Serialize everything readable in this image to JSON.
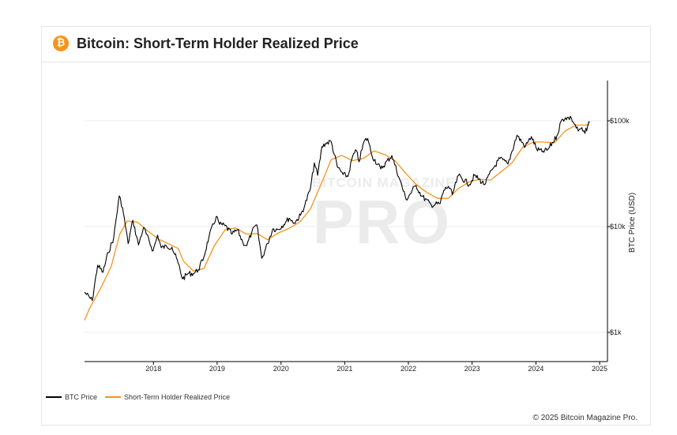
{
  "header": {
    "logo_glyph": "₿",
    "title": "Bitcoin: Short-Term Holder Realized Price"
  },
  "watermark": {
    "top": "BITCOIN MAGAZINE",
    "main": "PRO"
  },
  "footer": {
    "copyright": "© 2025 Bitcoin Magazine Pro."
  },
  "legend": [
    {
      "label": "BTC Price",
      "color": "#000000"
    },
    {
      "label": "Short-Term Holder Realized Price",
      "color": "#f7931a"
    }
  ],
  "chart_data": {
    "type": "line",
    "title": "Bitcoin: Short-Term Holder Realized Price",
    "ylabel": "BTC Price (USD)",
    "yscale": "log",
    "ylim": [
      400,
      250000
    ],
    "xlim": [
      "2017-06-01",
      "2025-08-15"
    ],
    "grid": true,
    "legend_position": "bottom-left",
    "x_ticks": [
      "2018",
      "2019",
      "2020",
      "2021",
      "2022",
      "2023",
      "2024",
      "2025"
    ],
    "y_ticks": [
      {
        "value": 1000,
        "label": "$1k"
      },
      {
        "value": 10000,
        "label": "$10k"
      },
      {
        "value": 100000,
        "label": "$100k"
      }
    ],
    "series": [
      {
        "name": "BTC Price",
        "color": "#000000",
        "points": [
          [
            "2017-06-01",
            2400
          ],
          [
            "2017-07-15",
            2000
          ],
          [
            "2017-08-15",
            4300
          ],
          [
            "2017-09-15",
            3700
          ],
          [
            "2017-10-15",
            5700
          ],
          [
            "2017-11-15",
            7800
          ],
          [
            "2017-12-17",
            19500
          ],
          [
            "2018-01-05",
            15000
          ],
          [
            "2018-02-06",
            6900
          ],
          [
            "2018-03-05",
            11500
          ],
          [
            "2018-04-06",
            6700
          ],
          [
            "2018-05-05",
            9800
          ],
          [
            "2018-06-29",
            5900
          ],
          [
            "2018-07-25",
            8300
          ],
          [
            "2018-08-15",
            6300
          ],
          [
            "2018-09-15",
            6500
          ],
          [
            "2018-10-15",
            6400
          ],
          [
            "2018-11-20",
            4500
          ],
          [
            "2018-12-15",
            3200
          ],
          [
            "2019-01-15",
            3600
          ],
          [
            "2019-02-15",
            3600
          ],
          [
            "2019-03-15",
            3900
          ],
          [
            "2019-04-15",
            5100
          ],
          [
            "2019-05-15",
            8000
          ],
          [
            "2019-06-26",
            12500
          ],
          [
            "2019-07-15",
            10500
          ],
          [
            "2019-08-15",
            10200
          ],
          [
            "2019-09-25",
            8500
          ],
          [
            "2019-10-26",
            9300
          ],
          [
            "2019-11-25",
            7100
          ],
          [
            "2019-12-18",
            6600
          ],
          [
            "2020-01-15",
            8800
          ],
          [
            "2020-02-13",
            10400
          ],
          [
            "2020-03-13",
            5000
          ],
          [
            "2020-04-15",
            6900
          ],
          [
            "2020-05-15",
            9500
          ],
          [
            "2020-06-15",
            9400
          ],
          [
            "2020-07-27",
            11000
          ],
          [
            "2020-08-17",
            12000
          ],
          [
            "2020-09-15",
            10800
          ],
          [
            "2020-10-21",
            12800
          ],
          [
            "2020-11-15",
            16000
          ],
          [
            "2020-12-17",
            23000
          ],
          [
            "2021-01-08",
            40000
          ],
          [
            "2021-01-27",
            30500
          ],
          [
            "2021-02-21",
            57000
          ],
          [
            "2021-03-13",
            61000
          ],
          [
            "2021-04-14",
            64000
          ],
          [
            "2021-05-19",
            37000
          ],
          [
            "2021-06-22",
            31000
          ],
          [
            "2021-07-20",
            29800
          ],
          [
            "2021-08-15",
            46000
          ],
          [
            "2021-09-07",
            52000
          ],
          [
            "2021-09-21",
            41000
          ],
          [
            "2021-10-20",
            64000
          ],
          [
            "2021-11-10",
            68000
          ],
          [
            "2021-12-04",
            47000
          ],
          [
            "2022-01-24",
            35000
          ],
          [
            "2022-03-28",
            47000
          ],
          [
            "2022-05-12",
            28000
          ],
          [
            "2022-06-18",
            18000
          ],
          [
            "2022-08-14",
            24500
          ],
          [
            "2022-09-15",
            19500
          ],
          [
            "2022-11-09",
            16000
          ],
          [
            "2022-12-30",
            16500
          ],
          [
            "2023-01-20",
            22000
          ],
          [
            "2023-02-15",
            24000
          ],
          [
            "2023-03-10",
            20000
          ],
          [
            "2023-04-14",
            30500
          ],
          [
            "2023-06-15",
            25000
          ],
          [
            "2023-07-15",
            30500
          ],
          [
            "2023-09-11",
            25000
          ],
          [
            "2023-10-24",
            34500
          ],
          [
            "2023-12-08",
            44000
          ],
          [
            "2024-01-23",
            39000
          ],
          [
            "2024-03-14",
            73000
          ],
          [
            "2024-05-01",
            57000
          ],
          [
            "2024-06-05",
            71000
          ],
          [
            "2024-07-05",
            54000
          ],
          [
            "2024-08-05",
            51000
          ],
          [
            "2024-09-06",
            53000
          ],
          [
            "2024-10-29",
            72000
          ],
          [
            "2024-11-22",
            99000
          ],
          [
            "2024-12-17",
            107000
          ],
          [
            "2025-01-20",
            106000
          ],
          [
            "2025-02-28",
            80000
          ],
          [
            "2025-03-15",
            84000
          ],
          [
            "2025-04-08",
            76000
          ],
          [
            "2025-04-28",
            95000
          ],
          [
            "2025-05-03",
            96000
          ]
        ]
      },
      {
        "name": "Short-Term Holder Realized Price",
        "color": "#f7931a",
        "points": [
          [
            "2017-06-01",
            1300
          ],
          [
            "2017-07-01",
            1700
          ],
          [
            "2017-09-01",
            2600
          ],
          [
            "2017-11-01",
            4200
          ],
          [
            "2017-12-20",
            8500
          ],
          [
            "2018-02-01",
            11300
          ],
          [
            "2018-04-01",
            11000
          ],
          [
            "2018-06-01",
            9000
          ],
          [
            "2018-08-01",
            7600
          ],
          [
            "2018-10-01",
            6800
          ],
          [
            "2018-11-20",
            6200
          ],
          [
            "2018-12-20",
            4700
          ],
          [
            "2019-02-15",
            3800
          ],
          [
            "2019-04-15",
            4000
          ],
          [
            "2019-06-15",
            6600
          ],
          [
            "2019-08-15",
            9300
          ],
          [
            "2019-10-15",
            9700
          ],
          [
            "2019-12-15",
            8500
          ],
          [
            "2020-02-15",
            8600
          ],
          [
            "2020-04-15",
            7500
          ],
          [
            "2020-06-15",
            8700
          ],
          [
            "2020-08-15",
            9600
          ],
          [
            "2020-10-15",
            11000
          ],
          [
            "2020-12-15",
            14500
          ],
          [
            "2021-02-15",
            25000
          ],
          [
            "2021-04-15",
            43000
          ],
          [
            "2021-06-15",
            47000
          ],
          [
            "2021-08-15",
            42000
          ],
          [
            "2021-10-15",
            44000
          ],
          [
            "2021-12-15",
            52000
          ],
          [
            "2022-02-15",
            48000
          ],
          [
            "2022-04-15",
            42000
          ],
          [
            "2022-06-15",
            32000
          ],
          [
            "2022-08-15",
            25000
          ],
          [
            "2022-10-15",
            21000
          ],
          [
            "2022-12-15",
            18500
          ],
          [
            "2023-02-15",
            18500
          ],
          [
            "2023-04-15",
            23000
          ],
          [
            "2023-06-15",
            26500
          ],
          [
            "2023-08-15",
            28000
          ],
          [
            "2023-10-15",
            27500
          ],
          [
            "2023-12-15",
            33000
          ],
          [
            "2024-02-15",
            40000
          ],
          [
            "2024-04-15",
            56000
          ],
          [
            "2024-06-15",
            63000
          ],
          [
            "2024-08-15",
            63000
          ],
          [
            "2024-10-15",
            62000
          ],
          [
            "2024-12-15",
            80000
          ],
          [
            "2025-02-15",
            91000
          ],
          [
            "2025-04-15",
            91000
          ],
          [
            "2025-05-03",
            93000
          ]
        ]
      }
    ]
  }
}
